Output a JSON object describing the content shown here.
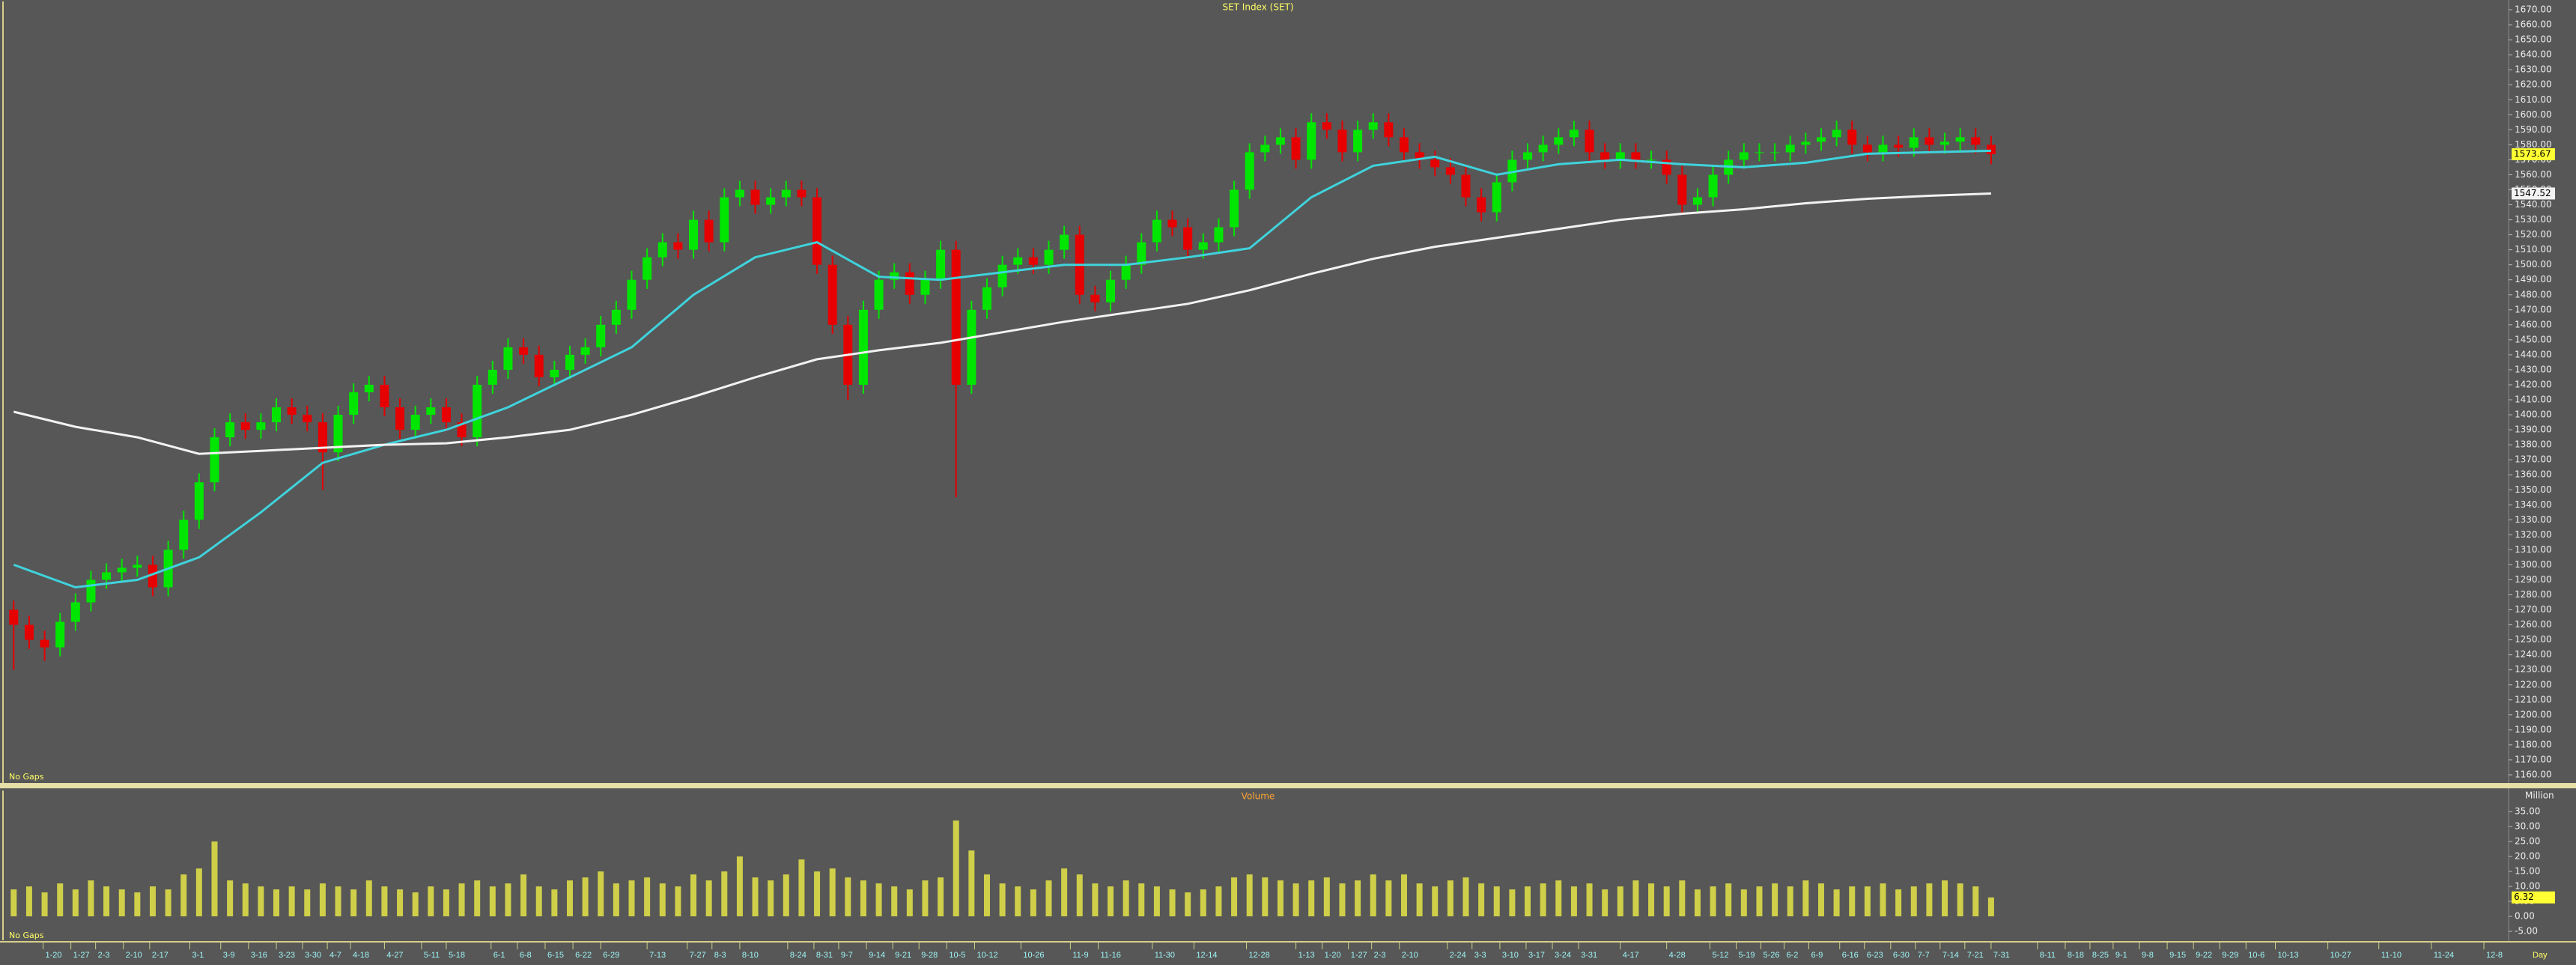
{
  "chart_data": {
    "type": "candlestick",
    "title": "SET Index (SET)",
    "gaps_label": "No Gaps",
    "x_unit_label": "Day",
    "xlim": [
      -0.5,
      161.5
    ],
    "xticks": [
      {
        "value": 1.9,
        "label": "1-20"
      },
      {
        "value": 3.7,
        "label": "1-27"
      },
      {
        "value": 5.3,
        "label": "2-3"
      },
      {
        "value": 7.1,
        "label": "2-10"
      },
      {
        "value": 8.8,
        "label": "2-17"
      },
      {
        "value": 11.4,
        "label": "3-1"
      },
      {
        "value": 13.4,
        "label": "3-9"
      },
      {
        "value": 15.2,
        "label": "3-16"
      },
      {
        "value": 17.0,
        "label": "3-23"
      },
      {
        "value": 18.7,
        "label": "3-30"
      },
      {
        "value": 20.3,
        "label": "4-7"
      },
      {
        "value": 21.8,
        "label": "4-18"
      },
      {
        "value": 24.0,
        "label": "4-27"
      },
      {
        "value": 26.4,
        "label": "5-11"
      },
      {
        "value": 28.0,
        "label": "5-18"
      },
      {
        "value": 30.9,
        "label": "6-1"
      },
      {
        "value": 32.6,
        "label": "6-8"
      },
      {
        "value": 34.4,
        "label": "6-15"
      },
      {
        "value": 36.2,
        "label": "6-22"
      },
      {
        "value": 38.0,
        "label": "6-29"
      },
      {
        "value": 41.0,
        "label": "7-13"
      },
      {
        "value": 43.6,
        "label": "7-27"
      },
      {
        "value": 45.2,
        "label": "8-3"
      },
      {
        "value": 47.0,
        "label": "8-10"
      },
      {
        "value": 50.1,
        "label": "8-24"
      },
      {
        "value": 51.8,
        "label": "8-31"
      },
      {
        "value": 53.4,
        "label": "9-7"
      },
      {
        "value": 55.2,
        "label": "9-14"
      },
      {
        "value": 56.9,
        "label": "9-21"
      },
      {
        "value": 58.6,
        "label": "9-28"
      },
      {
        "value": 60.4,
        "label": "10-5"
      },
      {
        "value": 62.2,
        "label": "10-12"
      },
      {
        "value": 65.2,
        "label": "10-26"
      },
      {
        "value": 68.4,
        "label": "11-9"
      },
      {
        "value": 70.2,
        "label": "11-16"
      },
      {
        "value": 73.7,
        "label": "11-30"
      },
      {
        "value": 76.4,
        "label": "12-14"
      },
      {
        "value": 79.8,
        "label": "12-28"
      },
      {
        "value": 83.0,
        "label": "1-13"
      },
      {
        "value": 84.7,
        "label": "1-20"
      },
      {
        "value": 86.4,
        "label": "1-27"
      },
      {
        "value": 87.9,
        "label": "2-3"
      },
      {
        "value": 89.7,
        "label": "2-10"
      },
      {
        "value": 92.8,
        "label": "2-24"
      },
      {
        "value": 94.4,
        "label": "3-3"
      },
      {
        "value": 96.2,
        "label": "3-10"
      },
      {
        "value": 97.9,
        "label": "3-17"
      },
      {
        "value": 99.6,
        "label": "3-24"
      },
      {
        "value": 101.3,
        "label": "3-31"
      },
      {
        "value": 104.0,
        "label": "4-17"
      },
      {
        "value": 107.0,
        "label": "4-28"
      },
      {
        "value": 109.8,
        "label": "5-12"
      },
      {
        "value": 111.5,
        "label": "5-19"
      },
      {
        "value": 113.1,
        "label": "5-26"
      },
      {
        "value": 114.6,
        "label": "6-2"
      },
      {
        "value": 116.2,
        "label": "6-9"
      },
      {
        "value": 118.2,
        "label": "6-16"
      },
      {
        "value": 119.8,
        "label": "6-23"
      },
      {
        "value": 121.5,
        "label": "6-30"
      },
      {
        "value": 123.1,
        "label": "7-7"
      },
      {
        "value": 124.7,
        "label": "7-14"
      },
      {
        "value": 126.3,
        "label": "7-21"
      },
      {
        "value": 128.0,
        "label": "7-31"
      },
      {
        "value": 131.0,
        "label": "8-11"
      },
      {
        "value": 132.8,
        "label": "8-18"
      },
      {
        "value": 134.4,
        "label": "8-25"
      },
      {
        "value": 135.9,
        "label": "9-1"
      },
      {
        "value": 137.6,
        "label": "9-8"
      },
      {
        "value": 139.4,
        "label": "9-15"
      },
      {
        "value": 141.1,
        "label": "9-22"
      },
      {
        "value": 142.8,
        "label": "9-29"
      },
      {
        "value": 144.5,
        "label": "10-6"
      },
      {
        "value": 146.4,
        "label": "10-13"
      },
      {
        "value": 149.8,
        "label": "10-27"
      },
      {
        "value": 153.1,
        "label": "11-10"
      },
      {
        "value": 156.5,
        "label": "11-24"
      },
      {
        "value": 159.9,
        "label": "12-8"
      }
    ],
    "up_color": "#00e600",
    "down_color": "#e60000",
    "open": [
      1270,
      1260,
      1250,
      1245,
      1262,
      1275,
      1290,
      1295,
      1298,
      1300,
      1285,
      1310,
      1330,
      1355,
      1385,
      1395,
      1390,
      1395,
      1405,
      1400,
      1395,
      1375,
      1400,
      1415,
      1420,
      1405,
      1390,
      1400,
      1405,
      1395,
      1385,
      1420,
      1430,
      1445,
      1440,
      1425,
      1430,
      1440,
      1445,
      1460,
      1470,
      1490,
      1505,
      1515,
      1510,
      1530,
      1515,
      1545,
      1550,
      1540,
      1545,
      1550,
      1545,
      1500,
      1460,
      1420,
      1470,
      1490,
      1495,
      1480,
      1490,
      1510,
      1420,
      1470,
      1485,
      1500,
      1505,
      1500,
      1510,
      1520,
      1480,
      1475,
      1490,
      1500,
      1515,
      1530,
      1525,
      1510,
      1515,
      1525,
      1550,
      1575,
      1580,
      1585,
      1570,
      1595,
      1590,
      1575,
      1590,
      1595,
      1585,
      1575,
      1570,
      1565,
      1560,
      1545,
      1535,
      1555,
      1570,
      1575,
      1580,
      1585,
      1590,
      1575,
      1570,
      1575,
      1570,
      1570,
      1560,
      1540,
      1545,
      1560,
      1570,
      1575,
      1575,
      1575,
      1580,
      1582,
      1585,
      1590,
      1580,
      1575,
      1580,
      1578,
      1585,
      1580,
      1582,
      1585,
      1580
    ],
    "high": [
      1276,
      1266,
      1256,
      1268,
      1281,
      1296,
      1301,
      1304,
      1306,
      1306,
      1316,
      1336,
      1361,
      1391,
      1401,
      1401,
      1401,
      1411,
      1411,
      1406,
      1401,
      1406,
      1421,
      1426,
      1426,
      1411,
      1406,
      1411,
      1411,
      1401,
      1426,
      1436,
      1451,
      1451,
      1446,
      1436,
      1446,
      1451,
      1466,
      1476,
      1496,
      1511,
      1521,
      1521,
      1536,
      1536,
      1551,
      1556,
      1556,
      1551,
      1556,
      1556,
      1551,
      1506,
      1466,
      1476,
      1496,
      1501,
      1501,
      1496,
      1516,
      1516,
      1476,
      1491,
      1506,
      1511,
      1511,
      1516,
      1526,
      1526,
      1486,
      1496,
      1506,
      1521,
      1536,
      1536,
      1531,
      1521,
      1531,
      1556,
      1581,
      1586,
      1591,
      1591,
      1601,
      1601,
      1596,
      1596,
      1601,
      1601,
      1591,
      1581,
      1576,
      1571,
      1566,
      1551,
      1561,
      1576,
      1581,
      1586,
      1591,
      1596,
      1596,
      1581,
      1581,
      1581,
      1576,
      1576,
      1566,
      1551,
      1566,
      1576,
      1581,
      1581,
      1581,
      1586,
      1588,
      1591,
      1596,
      1596,
      1586,
      1586,
      1586,
      1591,
      1591,
      1588,
      1591,
      1591,
      1586
    ],
    "low": [
      1230,
      1244,
      1236,
      1239,
      1256,
      1269,
      1284,
      1289,
      1292,
      1279,
      1279,
      1304,
      1324,
      1349,
      1379,
      1384,
      1384,
      1389,
      1394,
      1389,
      1350,
      1369,
      1394,
      1409,
      1399,
      1384,
      1384,
      1394,
      1389,
      1379,
      1379,
      1414,
      1424,
      1434,
      1419,
      1419,
      1424,
      1434,
      1439,
      1454,
      1464,
      1484,
      1499,
      1504,
      1504,
      1509,
      1509,
      1539,
      1534,
      1534,
      1539,
      1539,
      1494,
      1454,
      1410,
      1414,
      1464,
      1484,
      1474,
      1474,
      1484,
      1345,
      1414,
      1464,
      1479,
      1494,
      1494,
      1494,
      1504,
      1474,
      1469,
      1469,
      1484,
      1494,
      1509,
      1519,
      1504,
      1504,
      1509,
      1519,
      1544,
      1569,
      1574,
      1564,
      1564,
      1584,
      1569,
      1569,
      1584,
      1579,
      1569,
      1564,
      1559,
      1554,
      1539,
      1529,
      1529,
      1549,
      1564,
      1569,
      1574,
      1579,
      1569,
      1564,
      1564,
      1564,
      1564,
      1554,
      1534,
      1534,
      1539,
      1554,
      1564,
      1569,
      1569,
      1569,
      1574,
      1576,
      1579,
      1574,
      1569,
      1569,
      1572,
      1572,
      1574,
      1574,
      1576,
      1574,
      1567
    ],
    "close": [
      1260,
      1250,
      1245,
      1262,
      1275,
      1290,
      1295,
      1298,
      1300,
      1285,
      1310,
      1330,
      1355,
      1385,
      1395,
      1390,
      1395,
      1405,
      1400,
      1395,
      1375,
      1400,
      1415,
      1420,
      1405,
      1390,
      1400,
      1405,
      1395,
      1385,
      1420,
      1430,
      1445,
      1440,
      1425,
      1430,
      1440,
      1445,
      1460,
      1470,
      1490,
      1505,
      1515,
      1510,
      1530,
      1515,
      1545,
      1550,
      1540,
      1545,
      1550,
      1545,
      1500,
      1460,
      1420,
      1470,
      1490,
      1495,
      1480,
      1490,
      1510,
      1420,
      1470,
      1485,
      1500,
      1505,
      1500,
      1510,
      1520,
      1480,
      1475,
      1490,
      1500,
      1515,
      1530,
      1525,
      1510,
      1515,
      1525,
      1550,
      1575,
      1580,
      1585,
      1570,
      1595,
      1590,
      1575,
      1590,
      1595,
      1585,
      1575,
      1570,
      1565,
      1560,
      1545,
      1535,
      1555,
      1570,
      1575,
      1580,
      1585,
      1590,
      1575,
      1570,
      1575,
      1570,
      1570,
      1560,
      1540,
      1545,
      1560,
      1570,
      1575,
      1575,
      1575,
      1580,
      1582,
      1585,
      1590,
      1580,
      1575,
      1580,
      1578,
      1585,
      1580,
      1582,
      1585,
      1580,
      1573.67
    ],
    "lines": [
      {
        "color": "#3fd3dc",
        "x": [
          0,
          4,
          8,
          12,
          16,
          20,
          24,
          28,
          32,
          36,
          40,
          44,
          48,
          52,
          56,
          60,
          64,
          68,
          72,
          76,
          80,
          84,
          88,
          92,
          96,
          100,
          104,
          108,
          112,
          116,
          120,
          124,
          128
        ],
        "values": [
          1300,
          1285,
          1290,
          1305,
          1335,
          1368,
          1380,
          1390,
          1405,
          1425,
          1445,
          1480,
          1505,
          1515,
          1492,
          1490,
          1495,
          1500,
          1500,
          1505,
          1511,
          1545,
          1566,
          1572,
          1560,
          1567,
          1570,
          1567,
          1565,
          1568,
          1574,
          1575,
          1576
        ]
      },
      {
        "color": "#f2f2f2",
        "x": [
          0,
          4,
          8,
          12,
          16,
          20,
          24,
          28,
          32,
          36,
          40,
          44,
          48,
          52,
          56,
          60,
          64,
          68,
          72,
          76,
          80,
          84,
          88,
          92,
          96,
          100,
          104,
          108,
          112,
          116,
          120,
          124,
          128
        ],
        "values": [
          1402,
          1392,
          1385,
          1374,
          1376,
          1378,
          1380,
          1381,
          1385,
          1390,
          1400,
          1412,
          1425,
          1437,
          1443,
          1448,
          1455,
          1462,
          1468,
          1474,
          1483,
          1494,
          1504,
          1512,
          1518,
          1524,
          1530,
          1534,
          1537,
          1541,
          1544,
          1546,
          1547.52
        ]
      }
    ],
    "ylim": [
      1155,
      1675
    ],
    "yticks": [
      {
        "value": 1670,
        "label": "1670.00"
      },
      {
        "value": 1660,
        "label": "1660.00"
      },
      {
        "value": 1650,
        "label": "1650.00"
      },
      {
        "value": 1640,
        "label": "1640.00"
      },
      {
        "value": 1630,
        "label": "1630.00"
      },
      {
        "value": 1620,
        "label": "1620.00"
      },
      {
        "value": 1610,
        "label": "1610.00"
      },
      {
        "value": 1600,
        "label": "1600.00"
      },
      {
        "value": 1590,
        "label": "1590.00"
      },
      {
        "value": 1580,
        "label": "1580.00"
      },
      {
        "value": 1570,
        "label": "1570.00"
      },
      {
        "value": 1560,
        "label": "1560.00"
      },
      {
        "value": 1550,
        "label": "1550.00"
      },
      {
        "value": 1540,
        "label": "1540.00"
      },
      {
        "value": 1530,
        "label": "1530.00"
      },
      {
        "value": 1520,
        "label": "1520.00"
      },
      {
        "value": 1510,
        "label": "1510.00"
      },
      {
        "value": 1500,
        "label": "1500.00"
      },
      {
        "value": 1490,
        "label": "1490.00"
      },
      {
        "value": 1480,
        "label": "1480.00"
      },
      {
        "value": 1470,
        "label": "1470.00"
      },
      {
        "value": 1460,
        "label": "1460.00"
      },
      {
        "value": 1450,
        "label": "1450.00"
      },
      {
        "value": 1440,
        "label": "1440.00"
      },
      {
        "value": 1430,
        "label": "1430.00"
      },
      {
        "value": 1420,
        "label": "1420.00"
      },
      {
        "value": 1410,
        "label": "1410.00"
      },
      {
        "value": 1400,
        "label": "1400.00"
      },
      {
        "value": 1390,
        "label": "1390.00"
      },
      {
        "value": 1380,
        "label": "1380.00"
      },
      {
        "value": 1370,
        "label": "1370.00"
      },
      {
        "value": 1360,
        "label": "1360.00"
      },
      {
        "value": 1350,
        "label": "1350.00"
      },
      {
        "value": 1340,
        "label": "1340.00"
      },
      {
        "value": 1330,
        "label": "1330.00"
      },
      {
        "value": 1320,
        "label": "1320.00"
      },
      {
        "value": 1310,
        "label": "1310.00"
      },
      {
        "value": 1300,
        "label": "1300.00"
      },
      {
        "value": 1290,
        "label": "1290.00"
      },
      {
        "value": 1280,
        "label": "1280.00"
      },
      {
        "value": 1270,
        "label": "1270.00"
      },
      {
        "value": 1260,
        "label": "1260.00"
      },
      {
        "value": 1250,
        "label": "1250.00"
      },
      {
        "value": 1240,
        "label": "1240.00"
      },
      {
        "value": 1230,
        "label": "1230.00"
      },
      {
        "value": 1220,
        "label": "1220.00"
      },
      {
        "value": 1210,
        "label": "1210.00"
      },
      {
        "value": 1200,
        "label": "1200.00"
      },
      {
        "value": 1190,
        "label": "1190.00"
      },
      {
        "value": 1180,
        "label": "1180.00"
      },
      {
        "value": 1170,
        "label": "1170.00"
      },
      {
        "value": 1160,
        "label": "1160.00"
      }
    ],
    "volume": {
      "type": "bar",
      "title": "Volume",
      "unit_label": "Million",
      "color": "#cfcf4a",
      "values": [
        9,
        10,
        8,
        11,
        9,
        12,
        10,
        9,
        8,
        10,
        9,
        14,
        16,
        25,
        12,
        11,
        10,
        9,
        10,
        9,
        11,
        10,
        9,
        12,
        10,
        9,
        8,
        10,
        9,
        11,
        12,
        10,
        11,
        14,
        10,
        9,
        12,
        13,
        15,
        11,
        12,
        13,
        11,
        10,
        14,
        12,
        15,
        20,
        13,
        12,
        14,
        19,
        15,
        16,
        13,
        12,
        11,
        10,
        9,
        12,
        13,
        32,
        22,
        14,
        11,
        10,
        9,
        12,
        16,
        14,
        11,
        10,
        12,
        11,
        10,
        9,
        8,
        9,
        10,
        13,
        14,
        13,
        12,
        11,
        12,
        13,
        11,
        12,
        14,
        12,
        14,
        11,
        10,
        12,
        13,
        11,
        10,
        9,
        10,
        11,
        12,
        10,
        11,
        9,
        10,
        12,
        11,
        10,
        12,
        9,
        10,
        11,
        9,
        10,
        11,
        10,
        12,
        11,
        9,
        10,
        10,
        11,
        9,
        10,
        11,
        12,
        11,
        10,
        6.32
      ],
      "ylim": [
        -7.5,
        42
      ],
      "yticks": [
        {
          "value": 35,
          "label": "35.00"
        },
        {
          "value": 30,
          "label": "30.00"
        },
        {
          "value": 25,
          "label": "25.00"
        },
        {
          "value": 20,
          "label": "20.00"
        },
        {
          "value": 15,
          "label": "15.00"
        },
        {
          "value": 10,
          "label": "10.00"
        },
        {
          "value": 5,
          "label": "5.00"
        },
        {
          "value": 0,
          "label": "0.00"
        },
        {
          "value": -5,
          "label": "-5.00"
        }
      ]
    }
  }
}
